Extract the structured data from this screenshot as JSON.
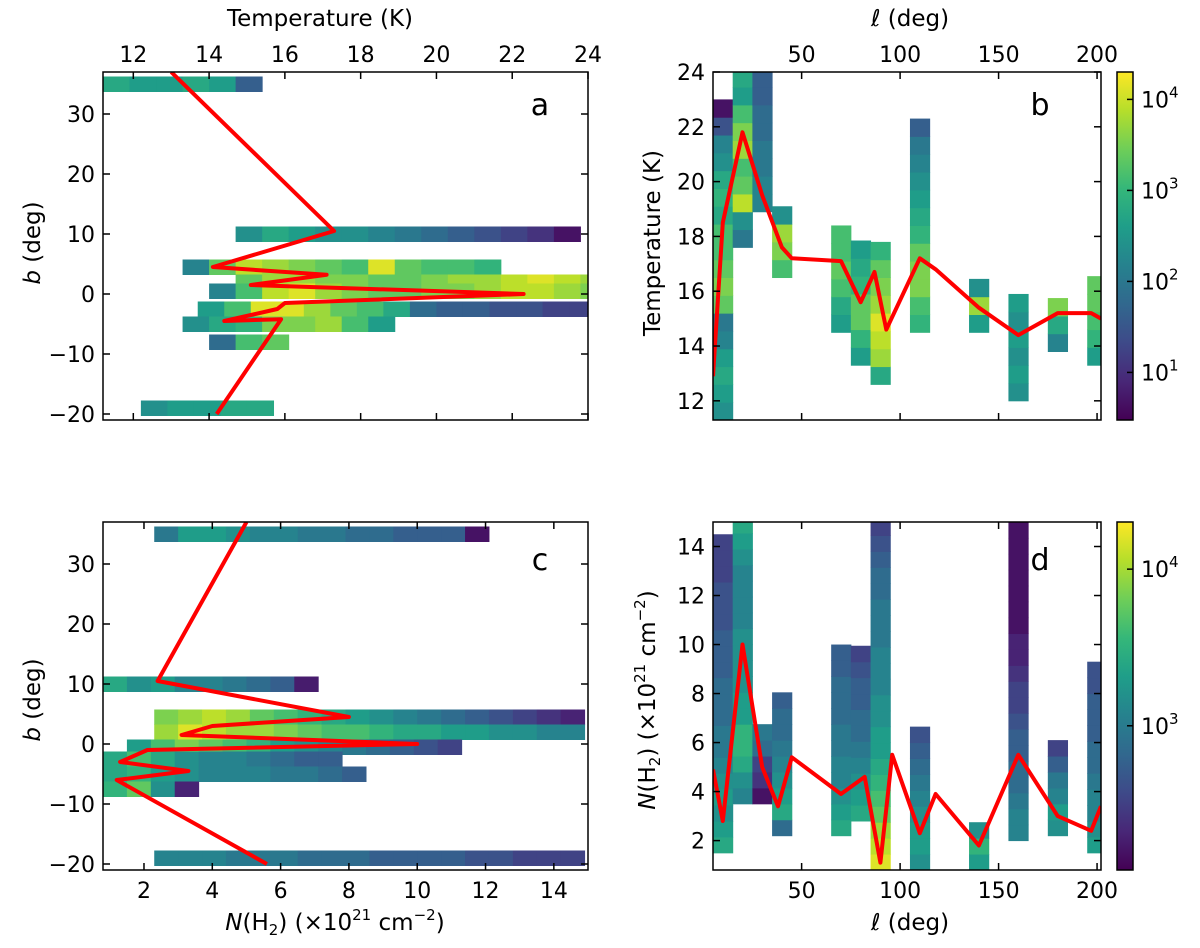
{
  "colors": {
    "curve": "#ff0000",
    "viridis": [
      "#440154",
      "#482777",
      "#3e4a89",
      "#31688e",
      "#26828e",
      "#1f9e89",
      "#35b779",
      "#6ece58",
      "#b5de2b",
      "#fde725"
    ]
  },
  "chart_data": [
    {
      "id": "a",
      "type": "heatmap",
      "panel_label": "a",
      "xlabel": "Temperature (K)",
      "xlabel_position": "top",
      "ylabel": "b (deg)",
      "xlim": [
        11.2,
        24
      ],
      "ylim": [
        -21,
        37
      ],
      "xticks": [
        12,
        14,
        16,
        18,
        20,
        22,
        24
      ],
      "yticks": [
        -20,
        -10,
        0,
        10,
        20,
        30
      ],
      "cell_w": 0.7,
      "cell_h": 2.5,
      "rows": [
        {
          "y": 35,
          "x0": 11.2,
          "v": [
            0.6,
            0.55,
            0.55,
            0.6,
            0.55,
            0.3
          ]
        },
        {
          "y": 10,
          "x0": 14.7,
          "v": [
            0.5,
            0.6,
            0.55,
            0.5,
            0.5,
            0.45,
            0.4,
            0.35,
            0.3,
            0.25,
            0.2,
            0.15,
            0.05
          ]
        },
        {
          "y": 4.5,
          "x0": 13.3,
          "v": [
            0.45,
            0.75,
            0.9,
            0.85,
            0.8,
            0.75,
            0.7,
            0.95,
            0.75,
            0.7,
            0.7,
            0.65
          ]
        },
        {
          "y": 2,
          "x0": 14.7,
          "v": [
            0.75,
            0.85,
            0.85,
            0.8,
            0.8,
            0.75,
            0.75,
            0.8,
            0.85,
            0.85,
            0.9,
            0.95,
            0.9,
            0.85
          ]
        },
        {
          "y": 0.5,
          "x0": 14,
          "v": [
            0.45,
            0.7,
            0.9,
            0.95,
            0.85,
            0.8,
            0.75,
            0.75,
            0.8,
            0.8,
            0.85,
            0.9,
            0.9,
            0.85,
            0.8
          ]
        },
        {
          "y": -2.5,
          "x0": 13.7,
          "v": [
            0.55,
            0.7,
            0.95,
            0.95,
            0.85,
            0.75,
            0.7,
            0.6,
            0.35,
            0.3,
            0.3,
            0.25,
            0.25,
            0.2,
            0.2
          ]
        },
        {
          "y": -5,
          "x0": 13.3,
          "v": [
            0.5,
            0.6,
            0.65,
            0.8,
            0.8,
            0.85,
            0.7,
            0.55
          ]
        },
        {
          "y": -8,
          "x0": 14,
          "v": [
            0.35,
            0.7,
            0.75
          ]
        },
        {
          "y": -19,
          "x0": 12.2,
          "v": [
            0.5,
            0.55,
            0.55,
            0.6,
            0.6
          ]
        }
      ],
      "curve": [
        [
          13.0,
          37
        ],
        [
          17.3,
          10.5
        ],
        [
          14.1,
          4.5
        ],
        [
          17.1,
          3.2
        ],
        [
          15.1,
          1.5
        ],
        [
          22.3,
          0
        ],
        [
          16.0,
          -1.5
        ],
        [
          15.8,
          -2.5
        ],
        [
          14.4,
          -4.5
        ],
        [
          15.9,
          -4.2
        ],
        [
          14.2,
          -20
        ]
      ]
    },
    {
      "id": "b",
      "type": "heatmap",
      "panel_label": "b",
      "xlabel": "ℓ (deg)",
      "xlabel_position": "top",
      "ylabel": "Temperature (K)",
      "xlim": [
        5,
        202
      ],
      "ylim": [
        11.3,
        24
      ],
      "xticks": [
        50,
        100,
        150,
        200
      ],
      "yticks": [
        12,
        14,
        16,
        18,
        20,
        22,
        24
      ],
      "cell_w": 10,
      "cell_h": 0.65,
      "columns": [
        {
          "x": 10,
          "y0": 11.3,
          "v": [
            0.5,
            0.55,
            0.6,
            0.55,
            0.45,
            0.4,
            0.75,
            0.8,
            0.75,
            0.7,
            0.7,
            0.6,
            0.65,
            0.6,
            0.5,
            0.45,
            0.25,
            0.05
          ]
        },
        {
          "x": 20,
          "y0": 17.6,
          "v": [
            0.4,
            0.5,
            0.9,
            0.75,
            0.7,
            0.85,
            0.8,
            0.7,
            0.55,
            0.6
          ]
        },
        {
          "x": 30,
          "y0": 18.9,
          "v": [
            0.45,
            0.45,
            0.4,
            0.4,
            0.35,
            0.35,
            0.3,
            0.3
          ]
        },
        {
          "x": 40,
          "y0": 16.5,
          "v": [
            0.7,
            0.8,
            0.85,
            0.5
          ]
        },
        {
          "x": 70,
          "y0": 14.5,
          "v": [
            0.55,
            0.6,
            0.7,
            0.75,
            0.7,
            0.7
          ]
        },
        {
          "x": 80,
          "y0": 13.3,
          "v": [
            0.55,
            0.65,
            0.75,
            0.75,
            0.65,
            0.6,
            0.55
          ]
        },
        {
          "x": 90,
          "y0": 12.6,
          "v": [
            0.6,
            0.85,
            0.9,
            0.95,
            0.85,
            0.8,
            0.75,
            0.65
          ]
        },
        {
          "x": 110,
          "y0": 14.5,
          "v": [
            0.65,
            0.7,
            0.8,
            0.8,
            0.75,
            0.65,
            0.6,
            0.55,
            0.5,
            0.45,
            0.4,
            0.3
          ]
        },
        {
          "x": 140,
          "y0": 14.5,
          "v": [
            0.55,
            0.85,
            0.5
          ]
        },
        {
          "x": 160,
          "y0": 12.0,
          "v": [
            0.5,
            0.55,
            0.5,
            0.55,
            0.5,
            0.55
          ]
        },
        {
          "x": 180,
          "y0": 13.8,
          "v": [
            0.45,
            0.6,
            0.8
          ]
        },
        {
          "x": 200,
          "y0": 13.3,
          "v": [
            0.55,
            0.65,
            0.7,
            0.75,
            0.75
          ]
        }
      ],
      "curve": [
        [
          5,
          12.9
        ],
        [
          10,
          18.5
        ],
        [
          20,
          21.8
        ],
        [
          30,
          19.5
        ],
        [
          40,
          17.6
        ],
        [
          45,
          17.2
        ],
        [
          70,
          17.1
        ],
        [
          80,
          15.6
        ],
        [
          87,
          16.7
        ],
        [
          93,
          14.6
        ],
        [
          110,
          17.2
        ],
        [
          118,
          16.8
        ],
        [
          140,
          15.4
        ],
        [
          160,
          14.4
        ],
        [
          180,
          15.2
        ],
        [
          197,
          15.2
        ],
        [
          202,
          15.0
        ]
      ]
    },
    {
      "id": "c",
      "type": "heatmap",
      "panel_label": "c",
      "xlabel": "N(H2) (×10^21 cm^-2)",
      "xlabel_position": "bottom",
      "ylabel": "b (deg)",
      "xlim": [
        0.8,
        15
      ],
      "ylim": [
        -21,
        37
      ],
      "xticks": [
        2,
        4,
        6,
        8,
        10,
        12,
        14
      ],
      "yticks": [
        -20,
        -10,
        0,
        10,
        20,
        30
      ],
      "cell_w": 0.7,
      "cell_h": 2.5,
      "rows": [
        {
          "y": 35,
          "x0": 2.3,
          "v": [
            0.4,
            0.55,
            0.55,
            0.5,
            0.45,
            0.45,
            0.4,
            0.4,
            0.35,
            0.35,
            0.3,
            0.3,
            0.3,
            0.05
          ]
        },
        {
          "y": 10,
          "x0": 0.8,
          "v": [
            0.6,
            0.5,
            0.55,
            0.45,
            0.45,
            0.4,
            0.35,
            0.3,
            0.08
          ]
        },
        {
          "y": 4.5,
          "x0": 2.3,
          "v": [
            0.8,
            0.85,
            0.9,
            0.85,
            0.75,
            0.7,
            0.65,
            0.6,
            0.55,
            0.5,
            0.45,
            0.4,
            0.35,
            0.3,
            0.25,
            0.2,
            0.15,
            0.1
          ]
        },
        {
          "y": 2,
          "x0": 2.3,
          "v": [
            0.85,
            0.95,
            0.9,
            0.85,
            0.85,
            0.8,
            0.75,
            0.7,
            0.7,
            0.65,
            0.6,
            0.6,
            0.55,
            0.55,
            0.5,
            0.5,
            0.45,
            0.45
          ]
        },
        {
          "y": -0.5,
          "x0": 1.5,
          "v": [
            0.55,
            0.7,
            0.8,
            0.75,
            0.7,
            0.65,
            0.55,
            0.5,
            0.45,
            0.4,
            0.35,
            0.3,
            0.25,
            0.2
          ]
        },
        {
          "y": -2.5,
          "x0": 0.8,
          "v": [
            0.6,
            0.7,
            0.6,
            0.5,
            0.45,
            0.45,
            0.4,
            0.35,
            0.3,
            0.3
          ]
        },
        {
          "y": -5,
          "x0": 0.8,
          "v": [
            0.6,
            0.65,
            0.55,
            0.5,
            0.45,
            0.45,
            0.45,
            0.4,
            0.4,
            0.35,
            0.3
          ]
        },
        {
          "y": -7.5,
          "x0": 0.8,
          "v": [
            0.65,
            0.75,
            0.5,
            0.1
          ]
        },
        {
          "y": -19,
          "x0": 2.3,
          "v": [
            0.45,
            0.45,
            0.45,
            0.4,
            0.4,
            0.4,
            0.35,
            0.35,
            0.35,
            0.3,
            0.3,
            0.3,
            0.3,
            0.25,
            0.25,
            0.2,
            0.2,
            0.2
          ]
        }
      ],
      "curve": [
        [
          5.0,
          37
        ],
        [
          2.4,
          10.5
        ],
        [
          8.0,
          4.5
        ],
        [
          4.0,
          3.0
        ],
        [
          3.1,
          1.5
        ],
        [
          10.0,
          0
        ],
        [
          2.1,
          -1.0
        ],
        [
          1.3,
          -3
        ],
        [
          3.3,
          -4.5
        ],
        [
          1.2,
          -6
        ],
        [
          5.6,
          -20
        ]
      ]
    },
    {
      "id": "d",
      "type": "heatmap",
      "panel_label": "d",
      "xlabel": "ℓ (deg)",
      "xlabel_position": "bottom",
      "ylabel": "N(H2) (×10^21 cm^-2)",
      "xlim": [
        5,
        202
      ],
      "ylim": [
        0.8,
        15
      ],
      "xticks": [
        50,
        100,
        150,
        200
      ],
      "yticks": [
        2,
        4,
        6,
        8,
        10,
        12,
        14
      ],
      "cell_w": 10,
      "cell_h": 0.65,
      "columns": [
        {
          "x": 10,
          "y0": 1.5,
          "v": [
            0.6,
            0.55,
            0.5,
            0.55,
            0.5,
            0.45,
            0.4,
            0.4,
            0.35,
            0.35,
            0.35,
            0.3,
            0.3,
            0.3,
            0.25,
            0.25,
            0.25,
            0.2,
            0.2,
            0.2
          ]
        },
        {
          "x": 20,
          "y0": 3.5,
          "v": [
            0.45,
            0.5,
            0.6,
            0.65,
            0.65,
            0.55,
            0.55,
            0.5,
            0.5,
            0.5,
            0.5,
            0.45,
            0.45,
            0.45,
            0.45,
            0.5,
            0.55,
            0.6
          ]
        },
        {
          "x": 30,
          "y0": 3.5,
          "v": [
            0.05,
            0.15,
            0.2,
            0.35,
            0.4
          ]
        },
        {
          "x": 40,
          "y0": 2.2,
          "v": [
            0.35,
            0.6,
            0.55,
            0.5,
            0.45,
            0.4,
            0.35,
            0.35,
            0.3
          ]
        },
        {
          "x": 70,
          "y0": 2.2,
          "v": [
            0.6,
            0.55,
            0.5,
            0.45,
            0.45,
            0.4,
            0.4,
            0.35,
            0.35,
            0.35,
            0.3,
            0.3
          ]
        },
        {
          "x": 80,
          "y0": 2.8,
          "v": [
            0.6,
            0.55,
            0.5,
            0.45,
            0.4,
            0.35,
            0.35,
            0.3,
            0.3,
            0.25,
            0.2
          ]
        },
        {
          "x": 90,
          "y0": 0.8,
          "v": [
            0.95,
            0.9,
            0.85,
            0.75,
            0.7,
            0.65,
            0.6,
            0.55,
            0.55,
            0.5,
            0.5,
            0.45,
            0.45,
            0.45,
            0.4,
            0.4,
            0.4,
            0.35,
            0.35,
            0.3,
            0.25,
            0.2
          ]
        },
        {
          "x": 110,
          "y0": 0.8,
          "v": [
            0.5,
            0.55,
            0.55,
            0.5,
            0.45,
            0.4,
            0.35,
            0.3,
            0.25
          ]
        },
        {
          "x": 140,
          "y0": 0.8,
          "v": [
            0.55,
            0.65,
            0.5
          ]
        },
        {
          "x": 160,
          "y0": 2.0,
          "v": [
            0.45,
            0.45,
            0.4,
            0.35,
            0.35,
            0.3,
            0.3,
            0.25,
            0.2,
            0.2,
            0.15,
            0.1,
            0.1,
            0.05,
            0.05,
            0.05,
            0.05,
            0.05,
            0.05,
            0.05
          ]
        },
        {
          "x": 180,
          "y0": 2.2,
          "v": [
            0.5,
            0.55,
            0.45,
            0.4,
            0.3,
            0.2
          ]
        },
        {
          "x": 200,
          "y0": 1.5,
          "v": [
            0.55,
            0.5,
            0.45,
            0.45,
            0.4,
            0.35,
            0.35,
            0.3,
            0.3,
            0.3,
            0.25,
            0.25
          ]
        }
      ],
      "curve": [
        [
          5,
          4.9
        ],
        [
          10,
          2.8
        ],
        [
          20,
          10.0
        ],
        [
          30,
          5.0
        ],
        [
          38,
          3.4
        ],
        [
          45,
          5.4
        ],
        [
          70,
          3.9
        ],
        [
          82,
          4.6
        ],
        [
          90,
          1.1
        ],
        [
          96,
          5.5
        ],
        [
          110,
          2.3
        ],
        [
          118,
          3.9
        ],
        [
          140,
          1.8
        ],
        [
          160,
          5.5
        ],
        [
          180,
          3.0
        ],
        [
          197,
          2.4
        ],
        [
          202,
          3.4
        ]
      ]
    },
    {
      "id": "colorbar-top",
      "type": "colorbar",
      "scale": "log",
      "range": [
        3,
        20000
      ],
      "ticks": [
        10,
        100,
        1000,
        10000
      ],
      "tick_labels": [
        "10^1",
        "10^2",
        "10^3",
        "10^4"
      ]
    },
    {
      "id": "colorbar-bottom",
      "type": "colorbar",
      "scale": "log",
      "range": [
        120,
        20000
      ],
      "ticks": [
        1000,
        10000
      ],
      "tick_labels": [
        "10^3",
        "10^4"
      ]
    }
  ]
}
